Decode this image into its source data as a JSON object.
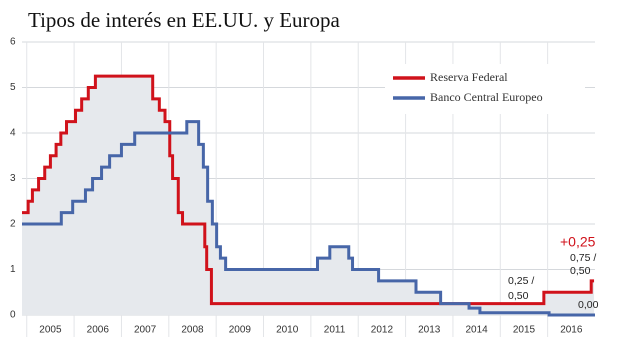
{
  "chart_data": {
    "type": "step-line",
    "title": "Tipos de interés en EE.UU. y Europa",
    "xlim": [
      2004.9,
      2017.0
    ],
    "xticks": [
      2005,
      2006,
      2007,
      2008,
      2009,
      2010,
      2011,
      2012,
      2013,
      2014,
      2015,
      2016
    ],
    "ylim": [
      0,
      6
    ],
    "yticks": [
      0,
      1,
      2,
      3,
      4,
      5,
      6
    ],
    "grid": true,
    "legend": "upper right",
    "area_color": "#e6e9ed",
    "series": [
      {
        "name": "Reserva Federal",
        "color": "#d0121b",
        "x": [
          2004.9,
          2005.03,
          2005.12,
          2005.25,
          2005.38,
          2005.5,
          2005.62,
          2005.72,
          2005.84,
          2006.03,
          2006.16,
          2006.3,
          2006.45,
          2007.66,
          2007.8,
          2007.92,
          2008.02,
          2008.08,
          2008.2,
          2008.29,
          2008.76,
          2008.8,
          2008.9,
          2015.92,
          2016.92,
          2016.98
        ],
        "values": [
          2.25,
          2.5,
          2.75,
          3.0,
          3.25,
          3.5,
          3.75,
          4.0,
          4.25,
          4.5,
          4.75,
          5.0,
          5.25,
          4.75,
          4.5,
          4.25,
          3.5,
          3.0,
          2.25,
          2.0,
          1.5,
          1.0,
          0.25,
          0.5,
          0.75,
          0.75
        ]
      },
      {
        "name": "Banco Central Europeo",
        "color": "#4766a8",
        "x": [
          2004.9,
          2005.73,
          2005.97,
          2006.24,
          2006.39,
          2006.58,
          2006.75,
          2007.0,
          2007.28,
          2008.38,
          2008.63,
          2008.73,
          2008.82,
          2008.92,
          2009.01,
          2009.09,
          2009.2,
          2011.14,
          2011.4,
          2011.8,
          2011.88,
          2012.43,
          2013.22,
          2013.74,
          2014.34,
          2014.57,
          2016.03,
          2017.0
        ],
        "values": [
          2.0,
          2.25,
          2.5,
          2.75,
          3.0,
          3.25,
          3.5,
          3.75,
          4.0,
          4.25,
          3.75,
          3.25,
          2.5,
          2.0,
          1.5,
          1.25,
          1.0,
          1.25,
          1.5,
          1.25,
          1.0,
          0.75,
          0.5,
          0.25,
          0.15,
          0.05,
          0.0,
          0.0
        ]
      }
    ],
    "annotations": [
      "+0,25",
      "0,75 /",
      "0,50",
      "0,25 /",
      "0,50",
      "0,00"
    ]
  }
}
